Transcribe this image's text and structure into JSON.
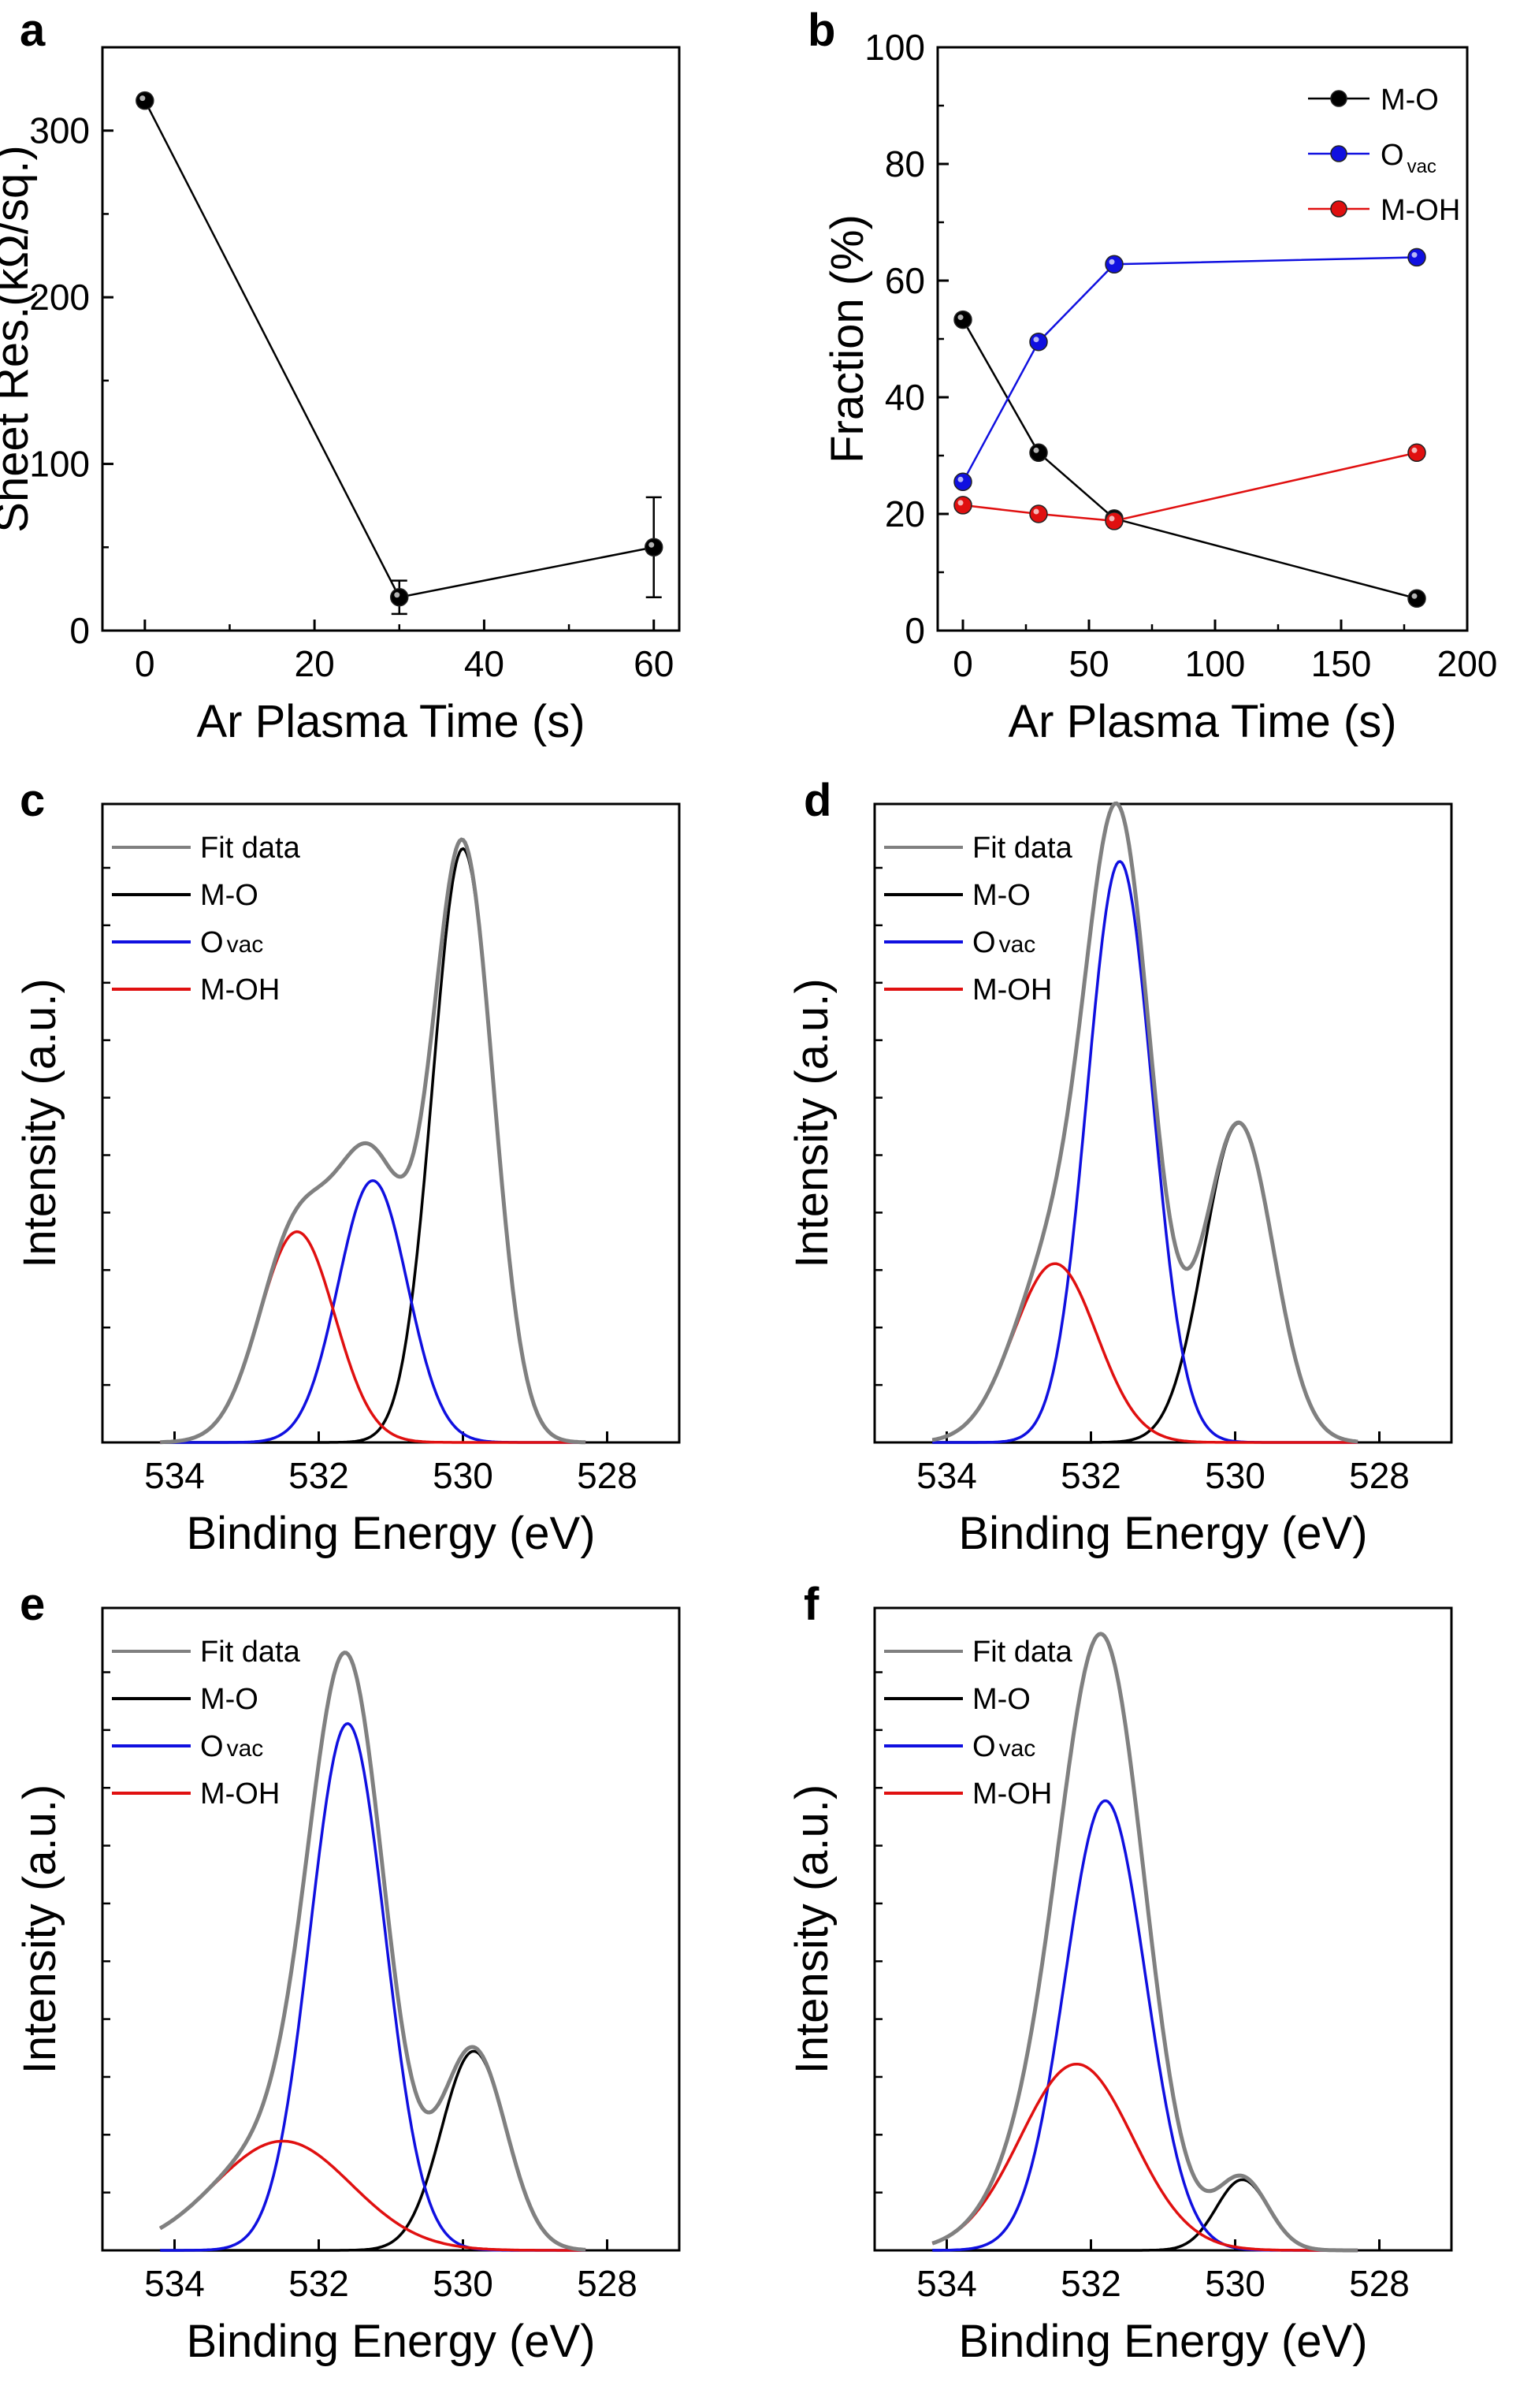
{
  "chart_data": [
    {
      "panel": "a",
      "type": "line",
      "xlabel": "Ar Plasma Time (s)",
      "ylabel": "Sheet Res.(kΩ/sq.)",
      "xlim": [
        -5,
        63
      ],
      "ylim": [
        0,
        350
      ],
      "xticks": [
        0,
        20,
        40,
        60
      ],
      "yticks": [
        0,
        100,
        200,
        300
      ],
      "series": [
        {
          "name": "Sheet Res.",
          "color": "#000000",
          "x": [
            0,
            30,
            60
          ],
          "values": [
            318,
            20,
            50
          ],
          "error": [
            0,
            10,
            30
          ]
        }
      ]
    },
    {
      "panel": "b",
      "type": "line",
      "xlabel": "Ar Plasma Time (s)",
      "ylabel": "Fraction (%)",
      "xlim": [
        -10,
        200
      ],
      "ylim": [
        0,
        100
      ],
      "xticks": [
        0,
        50,
        100,
        150,
        200
      ],
      "yticks": [
        0,
        20,
        40,
        60,
        80,
        100
      ],
      "legend_position": "top-right",
      "series": [
        {
          "name": "M-O",
          "legend_main": "M-O",
          "legend_sub": "",
          "color": "#000000",
          "x": [
            0,
            30,
            60,
            180
          ],
          "values": [
            53.3,
            30.5,
            19.2,
            5.5
          ]
        },
        {
          "name": "O_vac",
          "legend_main": "O",
          "legend_sub": "vac",
          "color": "#1010e0",
          "x": [
            0,
            30,
            60,
            180
          ],
          "values": [
            25.5,
            49.5,
            62.8,
            64.0
          ]
        },
        {
          "name": "M-OH",
          "legend_main": "M-OH",
          "legend_sub": "",
          "color": "#e01010",
          "x": [
            0,
            30,
            60,
            180
          ],
          "values": [
            21.5,
            20.0,
            18.8,
            30.5
          ]
        }
      ]
    },
    {
      "panel": "c",
      "type": "line",
      "xlabel": "Binding Energy (eV)",
      "ylabel": "Intensity (a.u.)",
      "xlim": [
        535,
        527
      ],
      "ylim": [
        0,
        1
      ],
      "xticks": [
        534,
        532,
        530,
        528
      ],
      "legend_position": "top-left",
      "legend": [
        {
          "main": "Fit data",
          "sub": "",
          "color": "#808080"
        },
        {
          "main": "M-O",
          "sub": "",
          "color": "#000000"
        },
        {
          "main": "O",
          "sub": "vac",
          "color": "#1010e0"
        },
        {
          "main": "M-OH",
          "sub": "",
          "color": "#e01010"
        }
      ],
      "peaks": [
        {
          "name": "M-O",
          "center": 530.0,
          "height": 0.93,
          "sigma": 0.42,
          "color": "#000000"
        },
        {
          "name": "O_vac",
          "center": 531.25,
          "height": 0.41,
          "sigma": 0.48,
          "color": "#1010e0"
        },
        {
          "name": "M-OH",
          "center": 532.3,
          "height": 0.33,
          "sigma": 0.52,
          "color": "#e01010"
        }
      ]
    },
    {
      "panel": "d",
      "type": "line",
      "xlabel": "Binding Energy (eV)",
      "ylabel": "Intensity (a.u.)",
      "xlim": [
        535,
        527
      ],
      "ylim": [
        0,
        1
      ],
      "xticks": [
        534,
        532,
        530,
        528
      ],
      "legend_position": "top-left",
      "legend": [
        {
          "main": "Fit data",
          "sub": "",
          "color": "#808080"
        },
        {
          "main": "M-O",
          "sub": "",
          "color": "#000000"
        },
        {
          "main": "O",
          "sub": "vac",
          "color": "#1010e0"
        },
        {
          "main": "M-OH",
          "sub": "",
          "color": "#e01010"
        }
      ],
      "peaks": [
        {
          "name": "M-O",
          "center": 529.95,
          "height": 0.5,
          "sigma": 0.48,
          "color": "#000000"
        },
        {
          "name": "O_vac",
          "center": 531.6,
          "height": 0.91,
          "sigma": 0.45,
          "color": "#1010e0"
        },
        {
          "name": "M-OH",
          "center": 532.5,
          "height": 0.28,
          "sigma": 0.58,
          "color": "#e01010"
        }
      ]
    },
    {
      "panel": "e",
      "type": "line",
      "xlabel": "Binding Energy (eV)",
      "ylabel": "Intensity (a.u.)",
      "xlim": [
        535,
        527
      ],
      "ylim": [
        0,
        1
      ],
      "xticks": [
        534,
        532,
        530,
        528
      ],
      "legend_position": "top-left",
      "legend": [
        {
          "main": "Fit data",
          "sub": "",
          "color": "#808080"
        },
        {
          "main": "M-O",
          "sub": "",
          "color": "#000000"
        },
        {
          "main": "O",
          "sub": "vac",
          "color": "#1010e0"
        },
        {
          "main": "M-OH",
          "sub": "",
          "color": "#e01010"
        }
      ],
      "peaks": [
        {
          "name": "M-O",
          "center": 529.85,
          "height": 0.31,
          "sigma": 0.45,
          "color": "#000000"
        },
        {
          "name": "O_vac",
          "center": 531.6,
          "height": 0.82,
          "sigma": 0.52,
          "color": "#1010e0"
        },
        {
          "name": "M-OH",
          "center": 532.5,
          "height": 0.17,
          "sigma": 0.95,
          "color": "#e01010"
        }
      ]
    },
    {
      "panel": "f",
      "type": "line",
      "xlabel": "Binding Energy (eV)",
      "ylabel": "Intensity (a.u.)",
      "xlim": [
        535,
        527
      ],
      "ylim": [
        0,
        1
      ],
      "xticks": [
        534,
        532,
        530,
        528
      ],
      "legend_position": "top-left",
      "legend": [
        {
          "main": "Fit data",
          "sub": "",
          "color": "#808080"
        },
        {
          "main": "M-O",
          "sub": "",
          "color": "#000000"
        },
        {
          "main": "O",
          "sub": "vac",
          "color": "#1010e0"
        },
        {
          "main": "M-OH",
          "sub": "",
          "color": "#e01010"
        }
      ],
      "peaks": [
        {
          "name": "M-O",
          "center": 529.9,
          "height": 0.11,
          "sigma": 0.36,
          "color": "#000000"
        },
        {
          "name": "O_vac",
          "center": 531.8,
          "height": 0.7,
          "sigma": 0.56,
          "color": "#1010e0"
        },
        {
          "name": "M-OH",
          "center": 532.2,
          "height": 0.29,
          "sigma": 0.78,
          "color": "#e01010"
        }
      ]
    }
  ]
}
